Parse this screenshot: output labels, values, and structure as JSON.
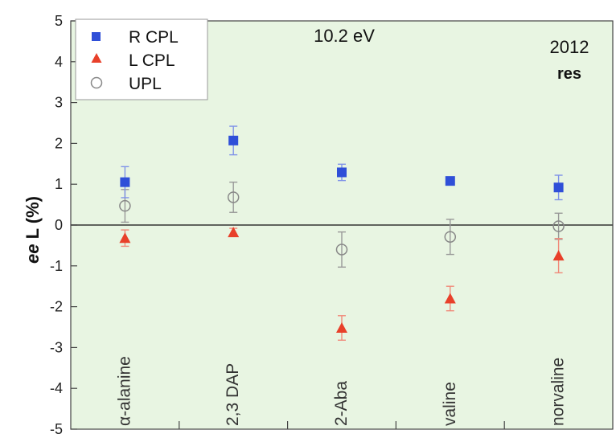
{
  "chart_data": {
    "type": "scatter",
    "categories": [
      "α-alanine",
      "2,3 DAP",
      "2-Aba",
      "valine",
      "norvaline"
    ],
    "ylabel_italic": "ee",
    "ylabel_rest": " L (%)",
    "ylim": [
      -5,
      5
    ],
    "yticks": [
      5,
      4,
      3,
      2,
      1,
      0,
      -1,
      -2,
      -3,
      -4,
      -5
    ],
    "annotations": {
      "energy": "10.2 eV",
      "year": "2012",
      "mode": "res"
    },
    "legend_position": "top-left",
    "grid": false,
    "colors": {
      "background": "#e8f5e2",
      "R_CPL": "#2f4fd8",
      "L_CPL": "#e8402a",
      "UPL": "#888888",
      "error_bar_R": "#7f92e8",
      "error_bar_L": "#f08a7a",
      "error_bar_U": "#999999"
    },
    "series": [
      {
        "name": "R CPL",
        "marker": "square",
        "values": [
          1.05,
          2.07,
          1.29,
          1.08,
          0.92
        ],
        "errors": [
          0.38,
          0.35,
          0.2,
          0.05,
          0.3
        ]
      },
      {
        "name": "L CPL",
        "marker": "triangle",
        "values": [
          -0.32,
          -0.18,
          -2.52,
          -1.8,
          -0.75
        ],
        "errors": [
          0.2,
          0.1,
          0.3,
          0.3,
          0.42
        ]
      },
      {
        "name": "UPL",
        "marker": "circle-open",
        "values": [
          0.47,
          0.68,
          -0.6,
          -0.29,
          -0.03
        ],
        "errors": [
          0.4,
          0.37,
          0.43,
          0.43,
          0.32
        ]
      }
    ]
  }
}
